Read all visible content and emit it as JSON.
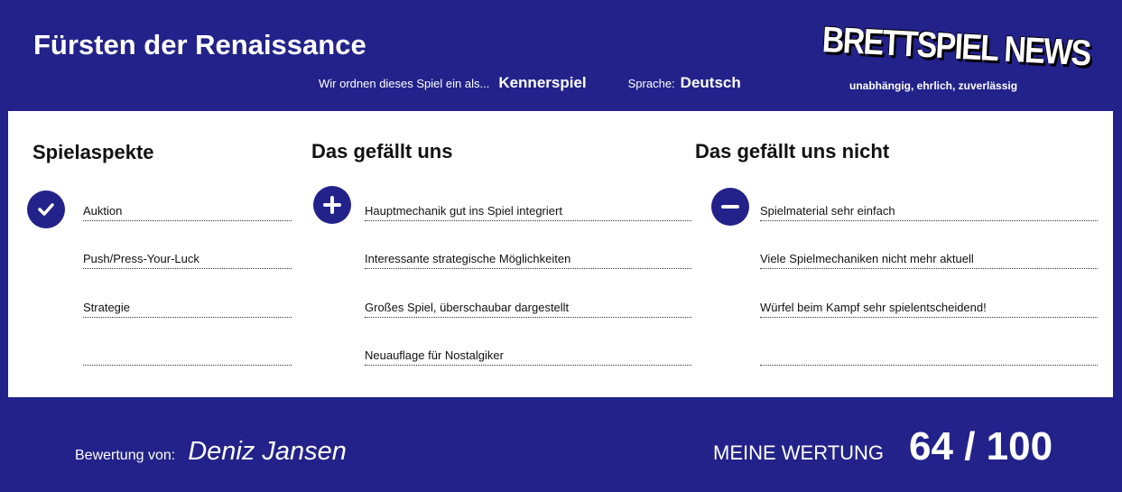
{
  "header": {
    "title": "Fürsten der Renaissance",
    "category_label": "Wir ordnen dieses Spiel ein als...",
    "category_value": "Kennerspiel",
    "language_label": "Sprache:",
    "language_value": "Deutsch"
  },
  "logo": {
    "text": "BRETTSPIEL NEWS",
    "tagline": "unabhängig, ehrlich, zuverlässig"
  },
  "columns": [
    {
      "heading": "Spielaspekte",
      "icon": "check-icon",
      "items": [
        "Auktion",
        "Push/Press-Your-Luck",
        "Strategie",
        ""
      ]
    },
    {
      "heading": "Das gefällt uns",
      "icon": "plus-icon",
      "items": [
        "Hauptmechanik gut ins Spiel integriert",
        "Interessante strategische Möglichkeiten",
        "Großes Spiel, überschaubar dargestellt",
        "Neuauflage für Nostalgiker"
      ]
    },
    {
      "heading": "Das gefällt uns nicht",
      "icon": "minus-icon",
      "items": [
        "Spielmaterial sehr einfach",
        "Viele Spielmechaniken nicht mehr aktuell",
        "Würfel beim Kampf sehr spielentscheidend!",
        ""
      ]
    }
  ],
  "footer": {
    "review_label": "Bewertung von:",
    "reviewer": "Deniz Jansen",
    "score_label": "MEINE WERTUNG",
    "score": "64 / 100"
  },
  "colors": {
    "brand": "#22228a"
  }
}
